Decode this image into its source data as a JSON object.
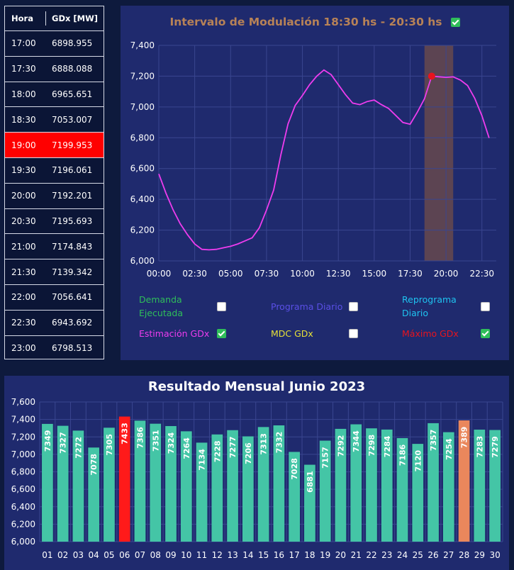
{
  "table": {
    "headers": [
      "Hora",
      "GDx [MW]"
    ],
    "highlight_index": 4,
    "highlight_color": "#ff0000",
    "rows": [
      {
        "hora": "17:00",
        "gdx": "6898.955"
      },
      {
        "hora": "17:30",
        "gdx": "6888.088"
      },
      {
        "hora": "18:00",
        "gdx": "6965.651"
      },
      {
        "hora": "18:30",
        "gdx": "7053.007"
      },
      {
        "hora": "19:00",
        "gdx": "7199.953"
      },
      {
        "hora": "19:30",
        "gdx": "7196.061"
      },
      {
        "hora": "20:00",
        "gdx": "7192.201"
      },
      {
        "hora": "20:30",
        "gdx": "7195.693"
      },
      {
        "hora": "21:00",
        "gdx": "7174.843"
      },
      {
        "hora": "21:30",
        "gdx": "7139.342"
      },
      {
        "hora": "22:00",
        "gdx": "7056.641"
      },
      {
        "hora": "22:30",
        "gdx": "6943.692"
      },
      {
        "hora": "23:00",
        "gdx": "6798.513"
      }
    ]
  },
  "top_panel": {
    "title": "Intervalo de Modulación 18:30 hs - 20:30 hs",
    "title_checked": true,
    "legend": [
      {
        "label_lines": [
          "Demanda",
          "Ejecutada"
        ],
        "color": "#2fbe5a",
        "checked": false
      },
      {
        "label_lines": [
          "Programa Diario"
        ],
        "color": "#5a4fe6",
        "checked": false
      },
      {
        "label_lines": [
          "Reprograma",
          "Diario"
        ],
        "color": "#1fc3f0",
        "checked": false
      },
      {
        "label_lines": [
          "Estimación GDx"
        ],
        "color": "#ee3cee",
        "checked": true
      },
      {
        "label_lines": [
          "MDC GDx"
        ],
        "color": "#e6e038",
        "checked": false
      },
      {
        "label_lines": [
          "Máximo GDx"
        ],
        "color": "#e8141e",
        "checked": true
      }
    ]
  },
  "chart_data": [
    {
      "type": "line",
      "ylim": [
        6000,
        7400
      ],
      "yticks": [
        6000,
        6200,
        6400,
        6600,
        6800,
        7000,
        7200,
        7400
      ],
      "ytick_labels": [
        "6,000",
        "6,200",
        "6,400",
        "6,600",
        "6,800",
        "7,000",
        "7,200",
        "7,400"
      ],
      "x_tick_labels": [
        "00:00",
        "02:30",
        "05:00",
        "07:30",
        "10:00",
        "12:30",
        "15:00",
        "17:30",
        "20:00",
        "22:30"
      ],
      "x_tick_hours": [
        0,
        2.5,
        5,
        7.5,
        10,
        12.5,
        15,
        17.5,
        20,
        22.5
      ],
      "xlim_hours": [
        0,
        23.5
      ],
      "grid": true,
      "shaded_interval_hours": [
        18.5,
        20.5
      ],
      "series": [
        {
          "name": "Estimación GDx",
          "color": "#ee3cee",
          "x_hours": [
            0,
            0.5,
            1,
            1.5,
            2,
            2.5,
            3,
            3.5,
            4,
            4.5,
            5,
            5.5,
            6,
            6.5,
            7,
            7.5,
            8,
            8.5,
            9,
            9.5,
            10,
            10.5,
            11,
            11.5,
            12,
            12.5,
            13,
            13.5,
            14,
            14.5,
            15,
            15.5,
            16,
            16.5,
            17,
            17.5,
            18,
            18.5,
            19,
            19.5,
            20,
            20.5,
            21,
            21.5,
            22,
            22.5,
            23
          ],
          "values": [
            6565,
            6440,
            6330,
            6240,
            6170,
            6110,
            6075,
            6072,
            6075,
            6085,
            6095,
            6110,
            6130,
            6150,
            6215,
            6330,
            6460,
            6690,
            6890,
            7010,
            7075,
            7145,
            7200,
            7240,
            7210,
            7145,
            7080,
            7025,
            7015,
            7035,
            7045,
            7015,
            6990,
            6945,
            6898.955,
            6888.088,
            6965.651,
            7053.007,
            7199.953,
            7196.061,
            7192.201,
            7195.693,
            7174.843,
            7139.342,
            7056.641,
            6943.692,
            6798.513
          ]
        }
      ],
      "max_point": {
        "x_hour": 19,
        "value": 7199.953,
        "color": "#e8141e"
      }
    },
    {
      "type": "bar",
      "title": "Resultado Mensual Junio 2023",
      "ylim": [
        6000,
        7600
      ],
      "yticks": [
        6000,
        6200,
        6400,
        6600,
        6800,
        7000,
        7200,
        7400,
        7600
      ],
      "ytick_labels": [
        "6,000",
        "6,200",
        "6,400",
        "6,600",
        "6,800",
        "7,000",
        "7,200",
        "7,400",
        "7,600"
      ],
      "grid": true,
      "categories": [
        "01",
        "02",
        "03",
        "04",
        "05",
        "06",
        "07",
        "08",
        "09",
        "10",
        "11",
        "12",
        "13",
        "14",
        "15",
        "16",
        "17",
        "18",
        "19",
        "20",
        "21",
        "22",
        "23",
        "24",
        "25",
        "26",
        "27",
        "28",
        "29",
        "30"
      ],
      "values": [
        7349,
        7327,
        7272,
        7078,
        7305,
        7433,
        7386,
        7351,
        7324,
        7264,
        7134,
        7228,
        7277,
        7206,
        7313,
        7332,
        7028,
        6881,
        7157,
        7292,
        7344,
        7298,
        7284,
        7186,
        7120,
        7357,
        7254,
        7389,
        7283,
        7279
      ],
      "data_labels": [
        "7349",
        "7327",
        "7272",
        "7078",
        "7305",
        "7433",
        "7386",
        "7351",
        "7324",
        "7264",
        "7134",
        "7228",
        "7277",
        "7206",
        "7313",
        "7332",
        "7028",
        "6881",
        "7157",
        "7292",
        "7344",
        "7298",
        "7284",
        "7186",
        "7120",
        "7357",
        "7254",
        "7389",
        "7283",
        "7279"
      ],
      "colors": {
        "default": "#44c5a6",
        "max": "#ff1a1a",
        "highlight": "#ea875c"
      },
      "max_index": 5,
      "highlight_index": 27
    }
  ]
}
